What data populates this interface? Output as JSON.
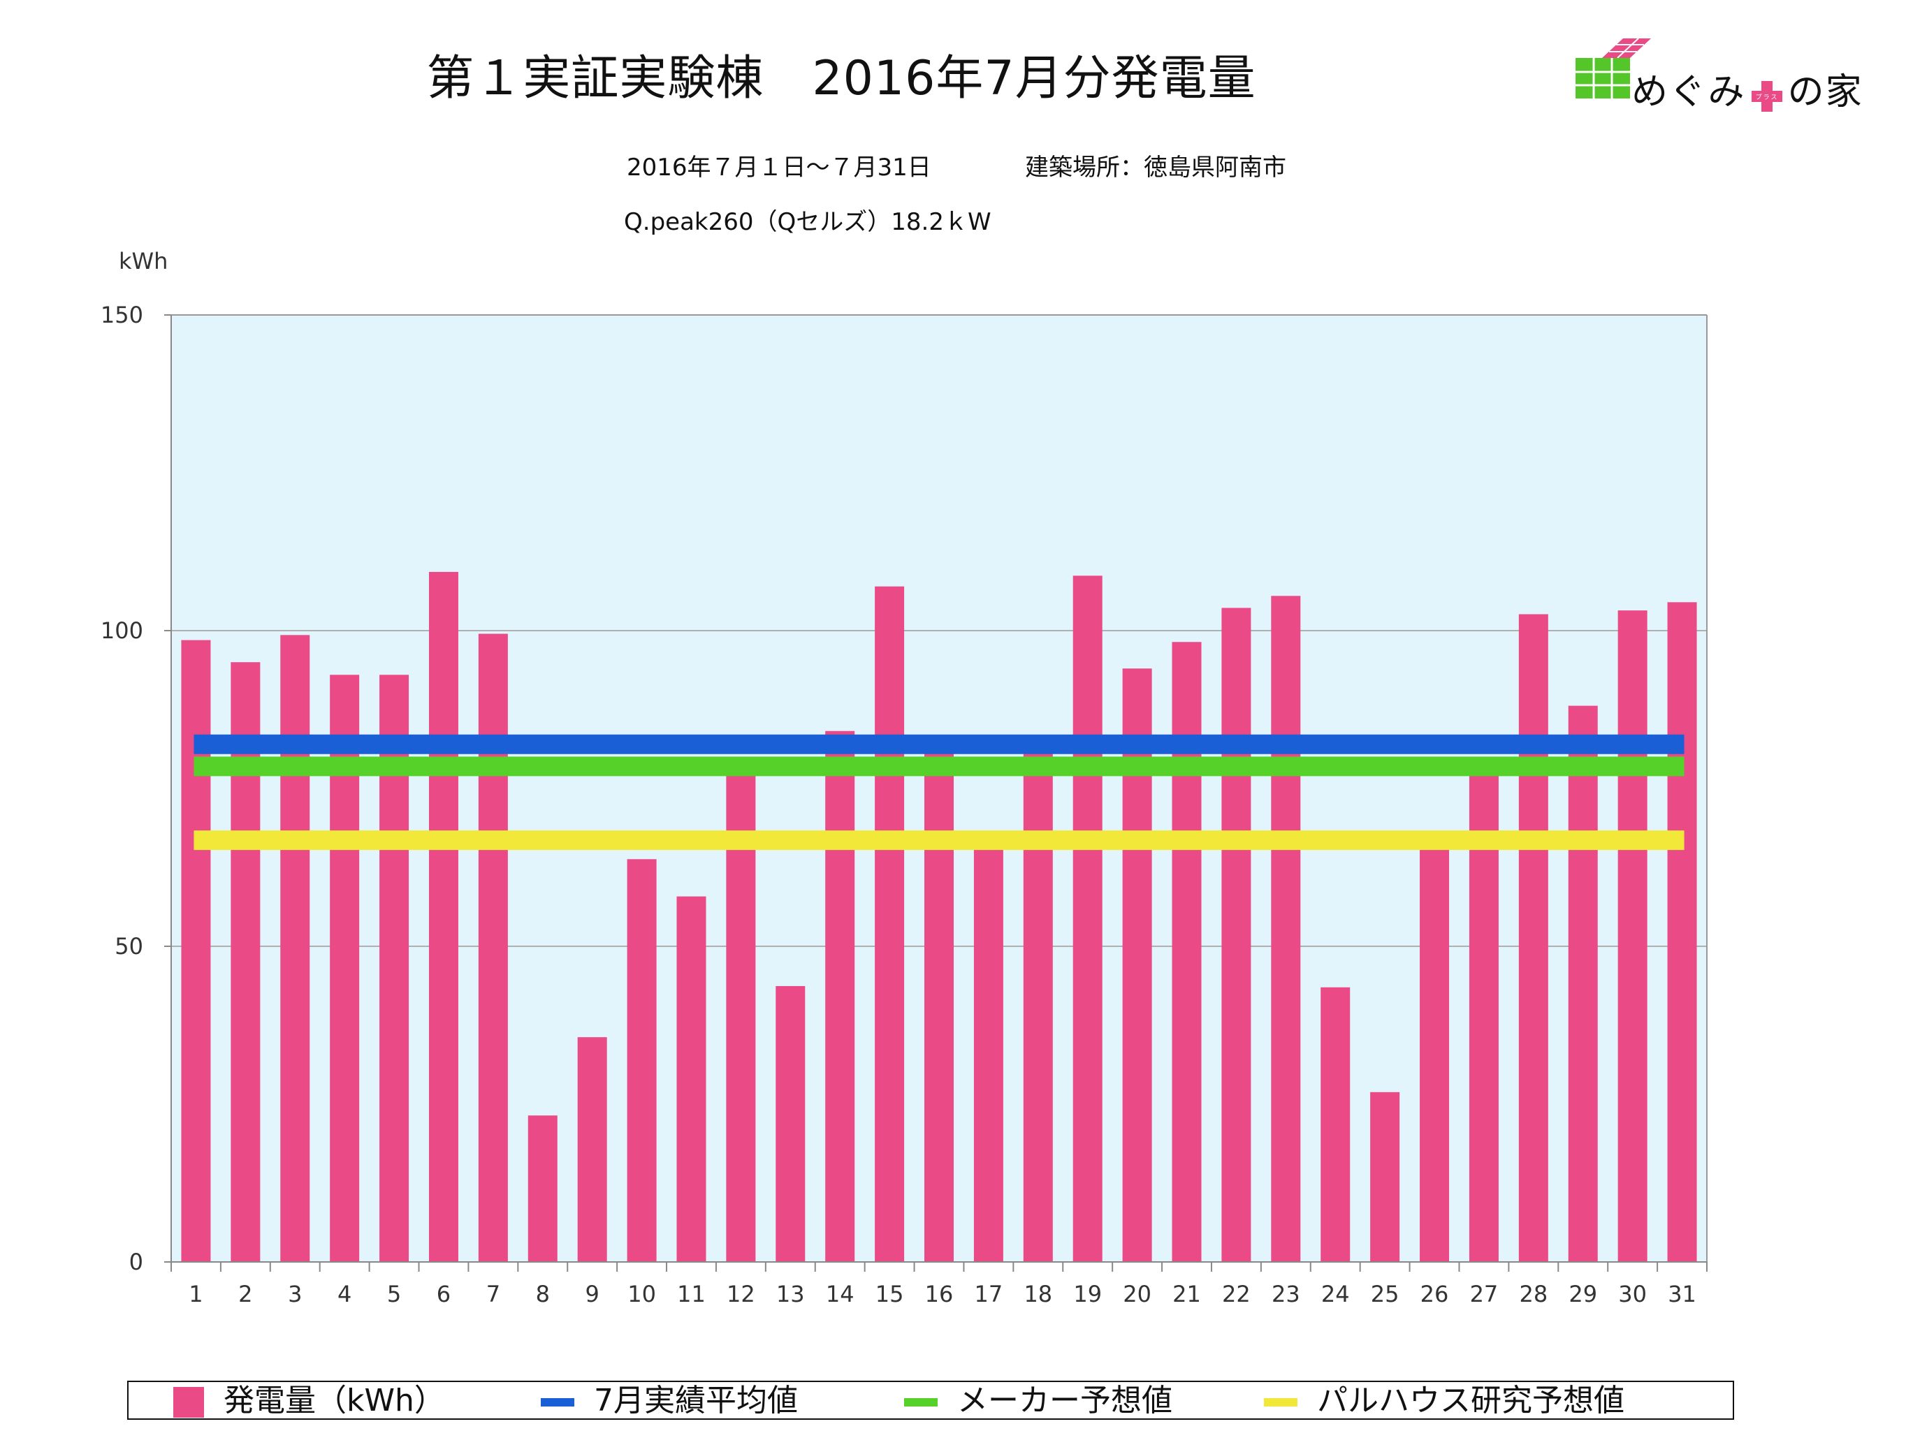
{
  "title": "第１実証実験棟　2016年7月分発電量",
  "period": "2016年７月１日〜７月31日",
  "location": "建築場所：徳島県阿南市",
  "system": "Q.peak260（Qセルズ）18.2ｋW",
  "logo": {
    "text_left": "めぐみ",
    "text_plus": "プラス",
    "text_right": "の家"
  },
  "colors": {
    "bar": "#ea4b86",
    "avg": "#1a5fd6",
    "maker": "#55d12a",
    "research": "#f2e83a",
    "plot_bg": "#e2f5fc",
    "grid": "#b0b0b0"
  },
  "chart_data": {
    "type": "bar",
    "ylabel": "kWh",
    "ylim": [
      0,
      150
    ],
    "yticks": [
      0,
      50,
      100,
      150
    ],
    "categories": [
      "1",
      "2",
      "3",
      "4",
      "5",
      "6",
      "7",
      "8",
      "9",
      "10",
      "11",
      "12",
      "13",
      "14",
      "15",
      "16",
      "17",
      "18",
      "19",
      "20",
      "21",
      "22",
      "23",
      "24",
      "25",
      "26",
      "27",
      "28",
      "29",
      "30",
      "31"
    ],
    "series": [
      {
        "name": "発電量（kWh）",
        "type": "bar",
        "values": [
          98.5,
          95,
          99.3,
          93,
          93,
          109.3,
          99.5,
          23.2,
          35.6,
          63.8,
          57.9,
          77.7,
          43.7,
          84.1,
          107,
          81,
          65.9,
          81,
          108.7,
          94,
          98.2,
          103.6,
          105.5,
          43.5,
          26.9,
          65.9,
          77.7,
          102.6,
          88.1,
          103.2,
          104.5
        ]
      },
      {
        "name": "7月実績平均値",
        "type": "line",
        "value": 82
      },
      {
        "name": "メーカー予想値",
        "type": "line",
        "value": 78.5
      },
      {
        "name": "パルハウス研究予想値",
        "type": "line",
        "value": 66.8
      }
    ],
    "grid": true,
    "legend": "bottom"
  }
}
